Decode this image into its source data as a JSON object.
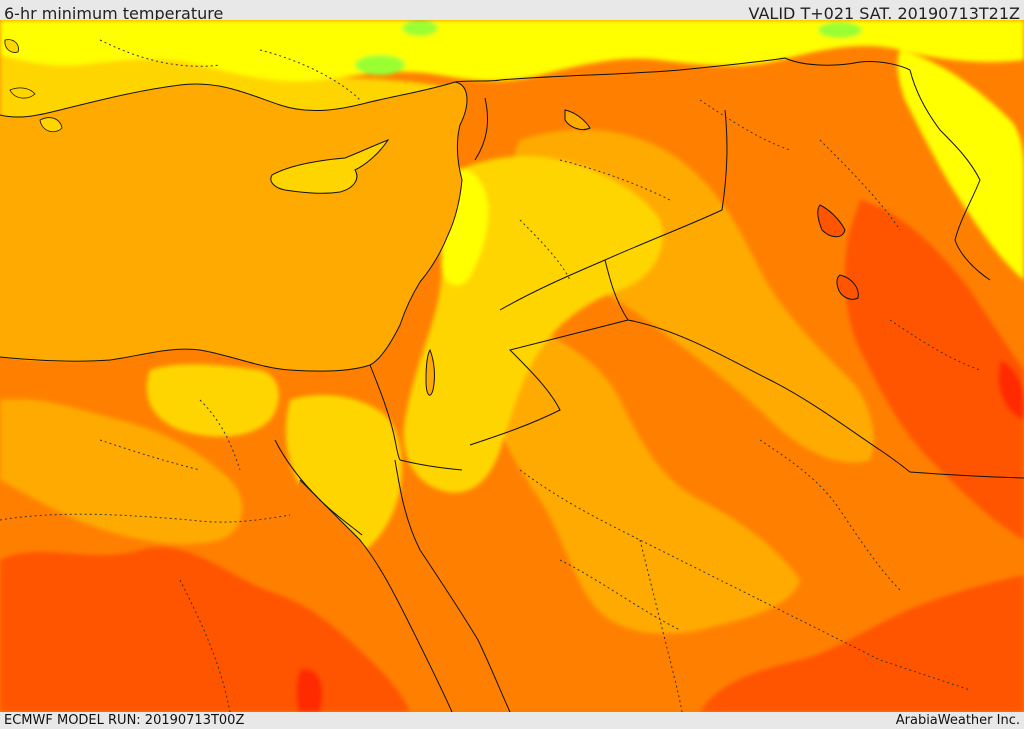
{
  "header": {
    "title": "6-hr minimum temperature",
    "valid": "VALID T+021 SAT. 20190713T21Z"
  },
  "footer": {
    "model_run": "ECMWF MODEL RUN: 20190713T00Z",
    "credit": "ArabiaWeather Inc."
  },
  "map": {
    "colors": {
      "sea": "#ffaa00",
      "light_yellow": "#ffff00",
      "yellow": "#ffd500",
      "light_orange": "#ffaa00",
      "orange": "#ff8000",
      "dark_orange": "#ff5500",
      "red": "#ff2a00",
      "green": "#9aff33",
      "border": "#111111"
    }
  }
}
